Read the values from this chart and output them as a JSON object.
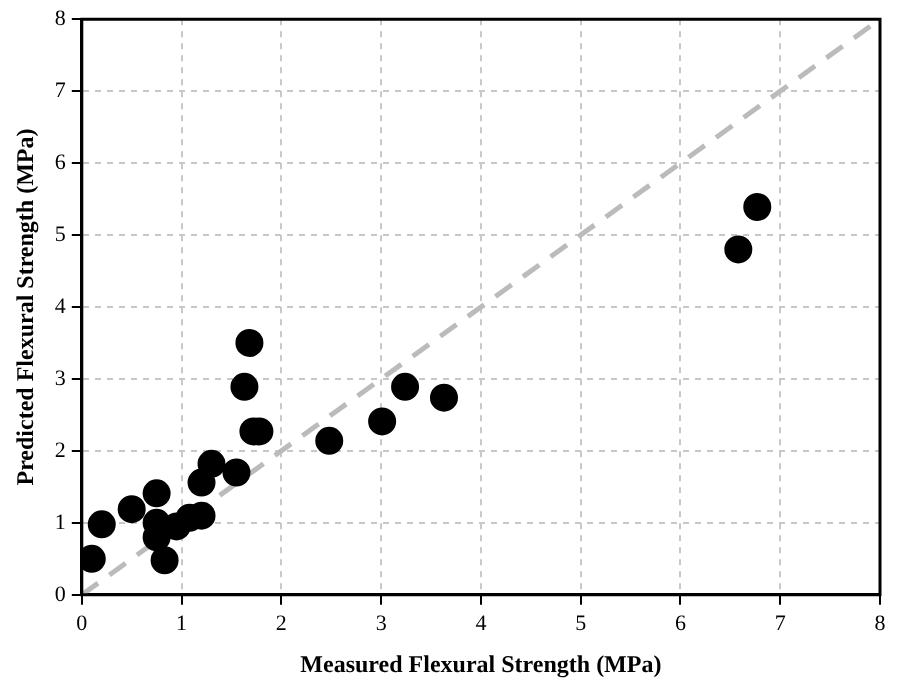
{
  "chart_data": {
    "type": "scatter",
    "xlabel": "Measured Flexural Strength (MPa)",
    "ylabel": "Predicted Flexural Strength (MPa)",
    "xlim": [
      0,
      8
    ],
    "ylim": [
      0,
      8
    ],
    "xticks": [
      0,
      1,
      2,
      3,
      4,
      5,
      6,
      7,
      8
    ],
    "yticks": [
      0,
      1,
      2,
      3,
      4,
      5,
      6,
      7,
      8
    ],
    "grid": true,
    "legend": false,
    "marker": "circle",
    "series": [
      {
        "color": "#000000",
        "x": [
          0.1,
          0.2,
          0.5,
          0.75,
          0.75,
          0.75,
          0.83,
          0.95,
          1.08,
          1.2,
          1.2,
          1.3,
          1.55,
          1.63,
          1.68,
          1.72,
          1.78,
          2.48,
          3.01,
          3.24,
          3.63,
          6.58,
          6.77
        ],
        "values": [
          0.5,
          0.98,
          1.19,
          1.41,
          1.0,
          0.8,
          0.48,
          0.95,
          1.07,
          1.1,
          1.56,
          1.82,
          1.7,
          2.89,
          3.5,
          2.27,
          2.27,
          2.14,
          2.41,
          2.89,
          2.74,
          4.8,
          5.39
        ]
      },
      {
        "type": "line",
        "color": "#bbbbbb",
        "line_style": "dashed",
        "marker": "none",
        "x": [
          0,
          8
        ],
        "values": [
          0,
          8
        ]
      }
    ]
  }
}
